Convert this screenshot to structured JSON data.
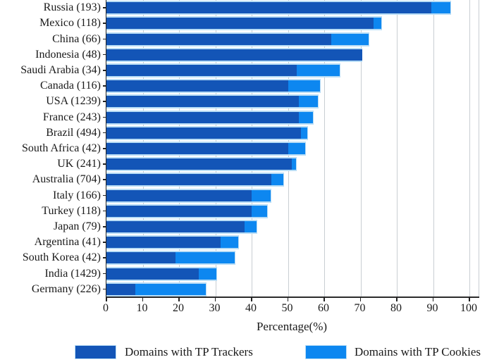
{
  "chart_data": {
    "type": "bar",
    "orientation": "horizontal",
    "title": "",
    "xlabel": "Percentage(%)",
    "xlim": [
      0,
      100
    ],
    "x_ticks": [
      0,
      10,
      20,
      30,
      40,
      50,
      60,
      70,
      80,
      90,
      100
    ],
    "grid": "vertical",
    "legend_position": "bottom",
    "categories": [
      "Russia (193)",
      "Mexico (118)",
      "China (66)",
      "Indonesia (48)",
      "Saudi Arabia (34)",
      "Canada (116)",
      "USA (1239)",
      "France (243)",
      "Brazil (494)",
      "South Africa (42)",
      "UK (241)",
      "Australia (704)",
      "Italy (166)",
      "Turkey (118)",
      "Japan (79)",
      "Argentina (41)",
      "South Korea (42)",
      "India (1429)",
      "Germany (226)"
    ],
    "series": [
      {
        "name": "Domains with TP Trackers",
        "color": "#1355b7",
        "values": [
          89.5,
          73.5,
          62,
          70.5,
          52.5,
          50,
          53,
          53,
          53.5,
          50,
          51,
          45.5,
          40,
          40,
          38,
          31.5,
          19,
          25.5,
          8
        ]
      },
      {
        "name": "Domains with TP Cookies",
        "color": "#0d87f0",
        "values": [
          95,
          76,
          72.5,
          70.5,
          64.5,
          59,
          58.5,
          57,
          55.5,
          55,
          52.5,
          49,
          45.5,
          44.5,
          41.5,
          36.5,
          35.5,
          30.5,
          27.5
        ]
      }
    ]
  },
  "colors": {
    "trackers": "#1355b7",
    "cookies": "#0d87f0",
    "bar_edge": "#b8ddf6",
    "gridline": "#c9ced3",
    "axis": "#222222",
    "text": "#1a1a1a"
  }
}
